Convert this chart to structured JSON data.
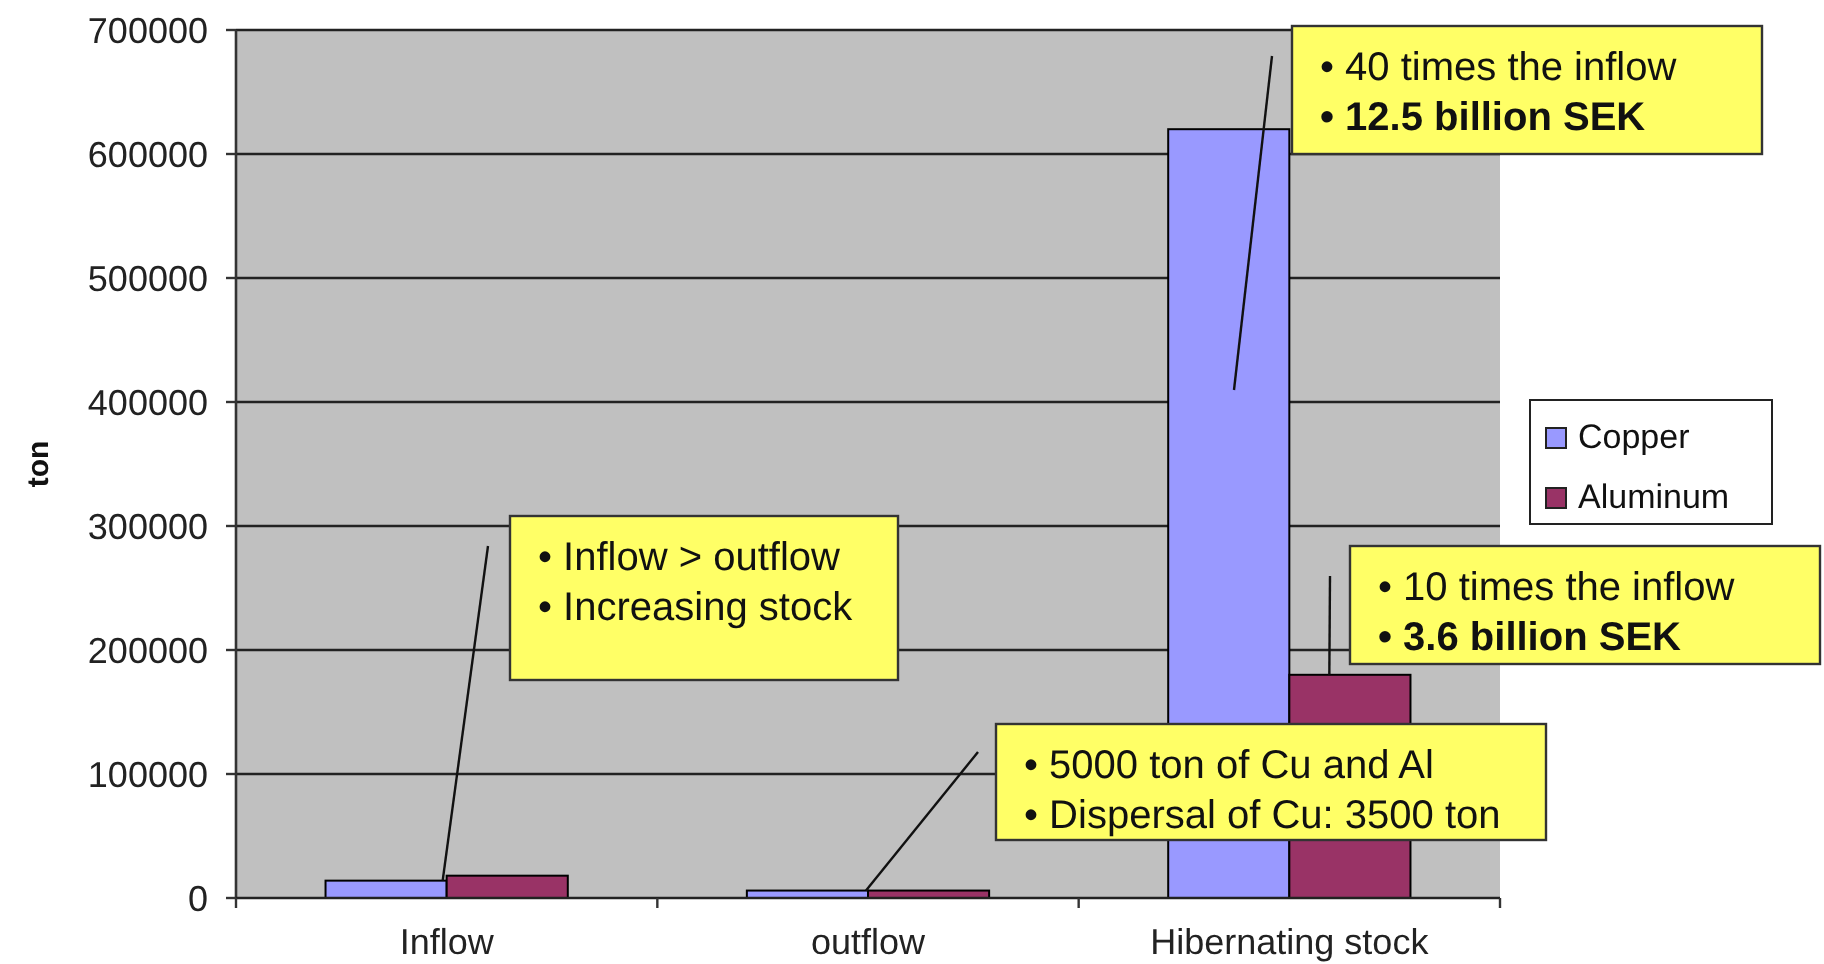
{
  "chart_data": {
    "type": "bar",
    "ylabel": "ton",
    "categories": [
      "Inflow",
      "outflow",
      "Hibernating stock"
    ],
    "series": [
      {
        "name": "Copper",
        "color": "#9999ff",
        "values": [
          14000,
          6000,
          620000
        ]
      },
      {
        "name": "Aluminum",
        "color": "#993366",
        "values": [
          18000,
          6000,
          180000
        ]
      }
    ],
    "ylim": [
      0,
      700000
    ],
    "yticks": [
      0,
      100000,
      200000,
      300000,
      400000,
      500000,
      600000,
      700000
    ],
    "grid": "y",
    "legend": "right",
    "annotations": [
      {
        "text": "• Inflow > outflow\n• Increasing stock",
        "x": "Inflow",
        "y": 14000
      },
      {
        "text": "• 5000 ton of Cu and Al\n• Dispersal of Cu: 3500 ton",
        "x": "outflow",
        "y": 6000
      },
      "• 40 times the inflow\n• 12.5 billion SEK",
      {
        "text": "• 10 times the inflow\n• 3.6 billion SEK",
        "x": "Hibernating stock",
        "y": 180000
      }
    ]
  }
}
